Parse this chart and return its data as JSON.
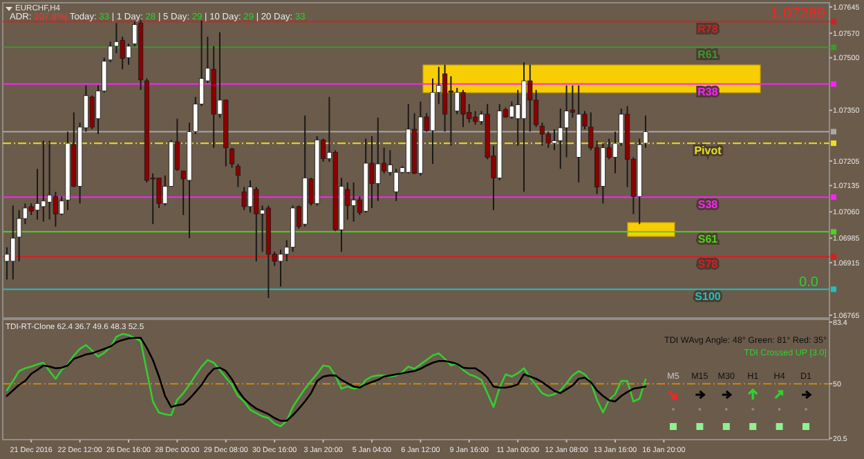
{
  "chart_data": [
    {
      "type": "candlestick",
      "title": "EURCHF,H4",
      "categories": [
        null,
        null,
        null,
        null,
        null,
        null,
        null,
        null,
        null,
        null,
        null,
        null,
        null,
        null,
        null,
        null,
        null,
        null,
        null,
        null,
        null,
        null,
        null,
        null,
        null,
        null,
        null,
        null,
        null,
        null,
        null,
        null,
        null,
        null,
        null,
        null,
        null,
        null,
        null,
        null,
        null,
        null,
        null,
        null,
        null,
        null,
        null,
        null,
        null,
        null,
        null,
        null,
        null,
        null,
        null,
        null,
        null,
        null,
        null,
        null,
        null,
        null,
        null,
        null,
        null,
        null,
        null,
        null,
        null,
        null,
        null,
        null,
        null,
        null,
        null,
        null,
        null,
        null,
        null,
        null,
        null,
        null,
        null,
        null,
        null,
        null,
        null,
        null,
        null,
        null,
        null,
        null,
        null,
        null,
        null,
        null,
        null,
        null,
        null,
        null,
        null,
        null,
        null,
        null,
        null,
        null,
        null,
        null,
        null,
        null,
        null,
        null,
        null,
        null,
        null,
        null,
        null,
        null,
        null,
        null,
        null,
        null,
        null,
        null,
        null,
        null,
        null,
        null,
        null,
        null,
        null,
        null,
        null,
        null,
        null,
        null
      ],
      "ohlc": [
        [
          1.06919,
          1.06959,
          1.06867,
          1.06939
        ],
        [
          1.06919,
          1.07078,
          1.06867,
          1.06985
        ],
        [
          1.06988,
          1.07065,
          1.06919,
          1.07041
        ],
        [
          1.07041,
          1.07084,
          1.07025,
          1.07071
        ],
        [
          1.07075,
          1.07084,
          1.07051,
          1.07062
        ],
        [
          1.07065,
          1.07183,
          1.07038,
          1.07084
        ],
        [
          1.07075,
          1.07263,
          1.07032,
          1.07091
        ],
        [
          1.07088,
          1.07263,
          1.07038,
          1.07108
        ],
        [
          1.07104,
          1.07117,
          1.07018,
          1.07054
        ],
        [
          1.07054,
          1.07104,
          1.07051,
          1.07091
        ],
        [
          1.07094,
          1.07289,
          1.07065,
          1.07256
        ],
        [
          1.07252,
          1.07344,
          1.07131,
          1.07133
        ],
        [
          1.07133,
          1.07315,
          1.07084,
          1.07302
        ],
        [
          1.073,
          1.07421,
          1.07289,
          1.07392
        ],
        [
          1.07388,
          1.07392,
          1.07296,
          1.07302
        ],
        [
          1.07326,
          1.07421,
          1.07282,
          1.07405
        ],
        [
          1.07405,
          1.075,
          1.07401,
          1.0749
        ],
        [
          1.07494,
          1.07546,
          1.07487,
          1.07533
        ],
        [
          1.07533,
          1.07599,
          1.07513,
          1.07546
        ],
        [
          1.0755,
          1.0756,
          1.07467,
          1.07498
        ],
        [
          1.075,
          1.0754,
          1.0748,
          1.07533
        ],
        [
          1.0754,
          1.07603,
          1.07533,
          1.07595
        ],
        [
          1.07599,
          1.07608,
          1.07408,
          1.07437
        ],
        [
          1.07434,
          1.07441,
          1.07144,
          1.0715
        ],
        [
          1.07157,
          1.0717,
          1.07025,
          1.07154
        ],
        [
          1.07157,
          1.07157,
          1.07071,
          1.07084
        ],
        [
          1.07084,
          1.07164,
          1.07078,
          1.07133
        ],
        [
          1.07133,
          1.07265,
          1.07131,
          1.0726
        ],
        [
          1.0726,
          1.07326,
          1.07177,
          1.07181
        ],
        [
          1.07177,
          1.07177,
          1.07051,
          1.07154
        ],
        [
          1.0715,
          1.07315,
          1.06985,
          1.07289
        ],
        [
          1.07289,
          1.07388,
          1.07282,
          1.07368
        ],
        [
          1.07368,
          1.07606,
          1.07362,
          1.07441
        ],
        [
          1.07434,
          1.0756,
          1.07428,
          1.0747
        ],
        [
          1.07467,
          1.07533,
          1.07243,
          1.07339
        ],
        [
          1.07339,
          1.07573,
          1.07329,
          1.07379
        ],
        [
          1.07379,
          1.07381,
          1.0719,
          1.07243
        ],
        [
          1.07239,
          1.07243,
          1.07186,
          1.07197
        ],
        [
          1.0719,
          1.07197,
          1.07131,
          1.07164
        ],
        [
          1.07117,
          1.07131,
          1.07065,
          1.07075
        ],
        [
          1.07075,
          1.0715,
          1.07058,
          1.07131
        ],
        [
          1.07124,
          1.07131,
          1.06919,
          1.07054
        ],
        [
          1.07054,
          1.07078,
          1.06946,
          1.07065
        ],
        [
          1.07071,
          1.07078,
          1.06814,
          1.06939
        ],
        [
          1.06939,
          1.06946,
          1.06906,
          1.06919
        ],
        [
          1.06919,
          1.06952,
          1.06847,
          1.06939
        ],
        [
          1.06939,
          1.06979,
          1.06919,
          1.06959
        ],
        [
          1.06959,
          1.07078,
          1.06946,
          1.07071
        ],
        [
          1.07075,
          1.07078,
          1.07012,
          1.07018
        ],
        [
          1.07025,
          1.07335,
          1.07018,
          1.07157
        ],
        [
          1.07154,
          1.07157,
          1.07078,
          1.07084
        ],
        [
          1.07084,
          1.07276,
          1.07078,
          1.07265
        ],
        [
          1.07265,
          1.07269,
          1.07203,
          1.07212
        ],
        [
          1.07212,
          1.07388,
          1.07203,
          1.0723
        ],
        [
          1.0723,
          1.07236,
          1.07005,
          1.07009
        ],
        [
          1.07009,
          1.07157,
          1.06946,
          1.07133
        ],
        [
          1.07124,
          1.07144,
          1.07038,
          1.07078
        ],
        [
          1.07078,
          1.07144,
          1.07032,
          1.07094
        ],
        [
          1.07094,
          1.07104,
          1.07051,
          1.07058
        ],
        [
          1.07062,
          1.07269,
          1.07058,
          1.07199
        ],
        [
          1.07199,
          1.07276,
          1.07071,
          1.07141
        ],
        [
          1.07141,
          1.07329,
          1.07091,
          1.07197
        ],
        [
          1.07199,
          1.07243,
          1.0717,
          1.07177
        ],
        [
          1.07173,
          1.07236,
          1.07164,
          1.07194
        ],
        [
          1.07117,
          1.07183,
          1.07091,
          1.07173
        ],
        [
          1.07173,
          1.0719,
          1.0717,
          1.07186
        ],
        [
          1.07173,
          1.07368,
          1.0717,
          1.07296
        ],
        [
          1.07296,
          1.07342,
          1.07168,
          1.0717
        ],
        [
          1.0717,
          1.07375,
          1.07164,
          1.07331
        ],
        [
          1.07331,
          1.07342,
          1.07289,
          1.07292
        ],
        [
          1.07292,
          1.07441,
          1.07197,
          1.07401
        ],
        [
          1.07401,
          1.07474,
          1.07368,
          1.07421
        ],
        [
          1.07454,
          1.0748,
          1.07289,
          1.07339
        ],
        [
          1.07405,
          1.07447,
          1.07249,
          1.07401
        ],
        [
          1.07348,
          1.07414,
          1.07339,
          1.07401
        ],
        [
          1.07401,
          1.07408,
          1.07302,
          1.07339
        ],
        [
          1.07344,
          1.07368,
          1.07315,
          1.07326
        ],
        [
          1.07331,
          1.07348,
          1.07309,
          1.07318
        ],
        [
          1.07318,
          1.07348,
          1.07309,
          1.07339
        ],
        [
          1.07339,
          1.07368,
          1.0721,
          1.07216
        ],
        [
          1.0722,
          1.07249,
          1.07065,
          1.07157
        ],
        [
          1.07157,
          1.07368,
          1.0715,
          1.07348
        ],
        [
          1.07352,
          1.07358,
          1.07329,
          1.07331
        ],
        [
          1.07331,
          1.07375,
          1.07326,
          1.07362
        ],
        [
          1.07326,
          1.07408,
          1.07249,
          1.07366
        ],
        [
          1.07326,
          1.07487,
          1.07117,
          1.07434
        ],
        [
          1.07434,
          1.0748,
          1.07289,
          1.07379
        ],
        [
          1.07379,
          1.07408,
          1.07302,
          1.07309
        ],
        [
          1.07305,
          1.07315,
          1.07249,
          1.07282
        ],
        [
          1.07282,
          1.07289,
          1.07243,
          1.07256
        ],
        [
          1.07256,
          1.07296,
          1.07236,
          1.07263
        ],
        [
          1.07263,
          1.07355,
          1.07183,
          1.073
        ],
        [
          1.073,
          1.07421,
          1.07216,
          1.07348
        ],
        [
          1.07351,
          1.07421,
          1.07329,
          1.07344
        ],
        [
          1.07216,
          1.07421,
          1.07144,
          1.07339
        ],
        [
          1.07339,
          1.07348,
          1.07296,
          1.07305
        ],
        [
          1.07302,
          1.07344,
          1.07236,
          1.07243
        ],
        [
          1.07243,
          1.07263,
          1.07111,
          1.07131
        ],
        [
          1.07133,
          1.07256,
          1.07084,
          1.07243
        ],
        [
          1.07243,
          1.07269,
          1.0721,
          1.07216
        ],
        [
          1.07216,
          1.07289,
          1.0717,
          1.07256
        ],
        [
          1.07256,
          1.07355,
          1.07249,
          1.07339
        ],
        [
          1.07339,
          1.07362,
          1.07131,
          1.0721
        ],
        [
          1.0721,
          1.07216,
          1.07054,
          1.07104
        ],
        [
          1.07104,
          1.07269,
          1.07025,
          1.07252
        ],
        [
          1.07256,
          1.07335,
          1.07243,
          1.07289
        ],
        null,
        null,
        null,
        null,
        null,
        null,
        null,
        null,
        null,
        null,
        null,
        null,
        null,
        null,
        null,
        null,
        null,
        null,
        null,
        null,
        null,
        null,
        null,
        null,
        null,
        null,
        null,
        null,
        null,
        null
      ],
      "ylim": [
        1.06757,
        1.07657
      ],
      "yticks": [
        1.07645,
        {
          "value": 1.0757,
          "label": "1.07570"
        },
        {
          "value": 1.075,
          "label": "1.07500"
        },
        {
          "value": 1.0735,
          "label": "1.07350"
        },
        1.07205,
        1.07135,
        {
          "value": 1.0706,
          "label": "1.07060"
        },
        1.06985,
        1.06915,
        1.06765
      ],
      "tick_labels": "y",
      "ref_lines": [
        {
          "axis": "y",
          "value": 1.07603,
          "label": "R78",
          "color": "#d42020"
        },
        {
          "axis": "y",
          "value": 1.0753,
          "label": "R61",
          "color": "#3a9a2a"
        },
        {
          "axis": "y",
          "value": 1.07425,
          "label": "R38",
          "color": "#ff20ff"
        },
        {
          "axis": "y",
          "value": 1.07289,
          "label": null,
          "color": "#a8a8a8"
        },
        {
          "axis": "y",
          "value": 1.07256,
          "label": "Pivot",
          "color": "#e8e020",
          "line_style": "dashed"
        },
        {
          "axis": "y",
          "value": 1.07102,
          "label": "S38",
          "color": "#ff20ff"
        },
        {
          "axis": "y",
          "value": 1.07003,
          "label": "S61",
          "color": "#50d020"
        },
        {
          "axis": "y",
          "value": 1.06932,
          "label": "S78",
          "color": "#d42020"
        },
        {
          "axis": "y",
          "value": 1.06839,
          "label": "S100",
          "color": "#20c0c0"
        }
      ],
      "annotations": [
        "ADR: 107.8%| Today: 33 | 1 Day: 28 | 5 Day: 29 | 10 Day: 29 | 20 Day: 33",
        "1.07289",
        "0.0"
      ]
    },
    {
      "type": "line",
      "title": "TDI-RT-Clone 62.4 36.7 49.6 48.3 52.5",
      "categories": [
        null,
        null,
        null,
        null,
        "21 Dec 2016",
        null,
        null,
        null,
        null,
        null,
        null,
        null,
        "22 Dec 12:00",
        null,
        null,
        null,
        null,
        null,
        null,
        null,
        "26 Dec 16:00",
        null,
        null,
        null,
        null,
        null,
        null,
        null,
        "28 Dec 00:00",
        null,
        null,
        null,
        null,
        null,
        null,
        null,
        "29 Dec 08:00",
        null,
        null,
        null,
        null,
        null,
        null,
        null,
        "30 Dec 16:00",
        null,
        null,
        null,
        null,
        null,
        null,
        null,
        "3 Jan 20:00",
        null,
        null,
        null,
        null,
        null,
        null,
        null,
        "5 Jan 04:00",
        null,
        null,
        null,
        null,
        null,
        null,
        null,
        "6 Jan 12:00",
        null,
        null,
        null,
        null,
        null,
        null,
        null,
        "9 Jan 16:00",
        null,
        null,
        null,
        null,
        null,
        null,
        null,
        "11 Jan 00:00",
        null,
        null,
        null,
        null,
        null,
        null,
        null,
        "12 Jan 08:00",
        null,
        null,
        null,
        null,
        null,
        null,
        null,
        "13 Jan 16:00",
        null,
        null,
        null,
        null,
        null,
        null,
        null,
        "16 Jan 20:00",
        null,
        null,
        null,
        null,
        null,
        null,
        null,
        null,
        null,
        null,
        null,
        null,
        null,
        null,
        null,
        null,
        null,
        null,
        null,
        null,
        null,
        null,
        null,
        null,
        null,
        null,
        null
      ],
      "series": [
        {
          "color": "#30d030",
          "values": [
            46.4,
            51.5,
            56.9,
            58.4,
            59.3,
            60.5,
            61.4,
            56.9,
            52.7,
            57.5,
            60.5,
            65.3,
            68.9,
            71,
            68,
            64.7,
            66.8,
            69.8,
            75.5,
            77,
            76.4,
            74.9,
            73.1,
            56.9,
            40.4,
            34.4,
            33.5,
            32.9,
            41.3,
            44.9,
            49.4,
            54.5,
            59.3,
            62.9,
            61.4,
            57.5,
            53.3,
            49.4,
            43.4,
            40.4,
            35.9,
            34.1,
            32.3,
            31.4,
            28.4,
            26.9,
            29.9,
            37.4,
            42.5,
            47.3,
            51.5,
            55.4,
            59.9,
            59.3,
            54.5,
            47.3,
            48.5,
            47.3,
            47.9,
            52.1,
            53.9,
            54.5,
            54.5,
            53.9,
            54.5,
            56.3,
            59.3,
            58.1,
            60.5,
            62.9,
            65.3,
            66.5,
            63.5,
            59.9,
            61.1,
            57.5,
            55.1,
            53.9,
            52.1,
            44.9,
            37.4,
            47.9,
            55.1,
            53.9,
            55.7,
            58.4,
            53.3,
            49.1,
            44.9,
            43.4,
            44.3,
            46.4,
            50.3,
            54.5,
            56.9,
            55.1,
            50.9,
            41.3,
            34.4,
            41.3,
            44.3,
            51.5,
            51.5,
            40.4,
            41.9,
            52.4,
            null,
            null,
            null,
            null,
            null,
            null,
            null,
            null,
            null,
            null,
            null,
            null,
            null,
            null,
            null,
            null,
            null,
            null,
            null,
            null,
            null,
            null,
            null,
            null,
            null,
            null,
            null,
            null,
            null,
            null
          ]
        },
        {
          "color": "#000000",
          "values": [
            43.4,
            46.4,
            49.4,
            51.5,
            55.4,
            57.5,
            59.9,
            59.3,
            58.4,
            58.7,
            59.9,
            63.5,
            64.7,
            65.9,
            66.5,
            67.7,
            68.9,
            70.1,
            72.5,
            73.7,
            74.6,
            74.9,
            74.9,
            69.5,
            62.9,
            53.9,
            43.4,
            37.4,
            38.3,
            38.9,
            41.9,
            45.5,
            49.4,
            54.5,
            58.1,
            58.7,
            56.9,
            52.4,
            46.4,
            41.9,
            38.9,
            36.5,
            35,
            33.5,
            31.4,
            29.9,
            29.9,
            32.9,
            36.5,
            40.4,
            44.9,
            51.5,
            53.9,
            54.5,
            54.5,
            52.1,
            50.3,
            48.5,
            47.9,
            49.7,
            50.9,
            52.1,
            53.9,
            54.5,
            55.1,
            55.7,
            56.3,
            56.9,
            58.1,
            59.9,
            61.4,
            62.3,
            62.3,
            61.7,
            60.8,
            58.7,
            58.4,
            58.4,
            56.3,
            53.3,
            48.5,
            47.9,
            47.9,
            48.5,
            49.7,
            55.1,
            53.9,
            52.7,
            50.9,
            48.5,
            46.1,
            44.9,
            47,
            49.1,
            52.7,
            53.3,
            50.9,
            46.4,
            43.4,
            41,
            40.4,
            43.4,
            45.5,
            47.3,
            47.9,
            48.5,
            null,
            null,
            null,
            null,
            null,
            null,
            null,
            null,
            null,
            null,
            null,
            null,
            null,
            null,
            null,
            null,
            null,
            null,
            null,
            null,
            null,
            null,
            null,
            null,
            null,
            null,
            null,
            null,
            null,
            null
          ]
        }
      ],
      "ylim": [
        19.7,
        84.9
      ],
      "yticks": [
        83.4,
        50,
        20.5
      ],
      "ref_lines": [
        {
          "axis": "y",
          "value": 50,
          "label": null,
          "color": "#c88a10",
          "line_style": "dashed"
        }
      ],
      "annotations": [
        "TDI WAvg Angle: 48°  Green: 81°  Red: 35°",
        "TDI Crossed UP [3.0]",
        "M5",
        "M15",
        "M30",
        "H1",
        "H4",
        "D1"
      ]
    }
  ]
}
